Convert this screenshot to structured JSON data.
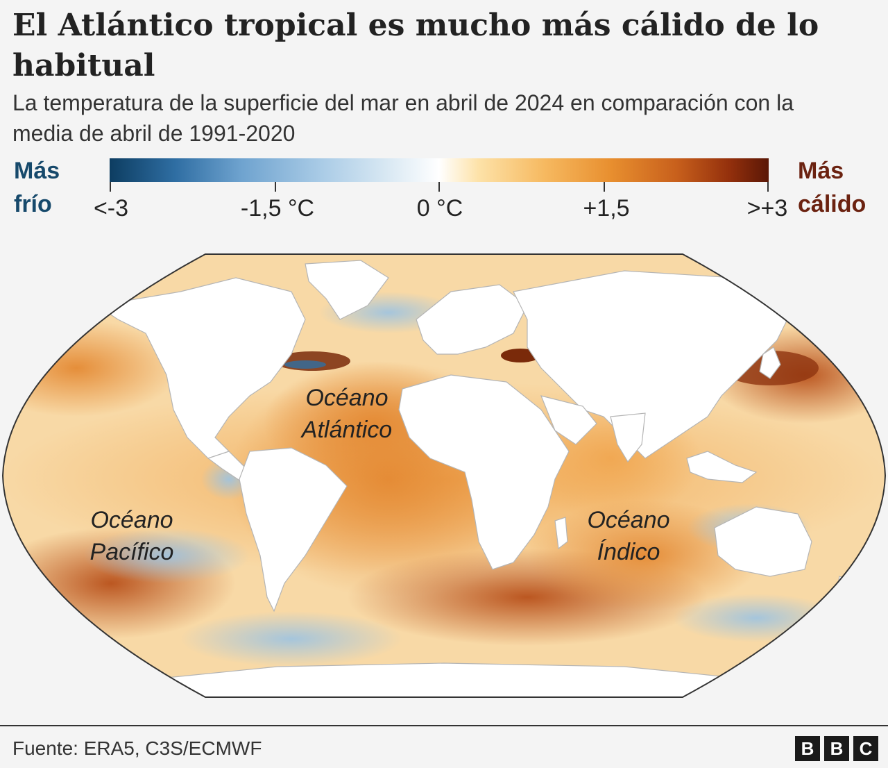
{
  "title": "El Atlántico tropical es mucho más cálido de lo habitual",
  "subtitle": "La temperatura de la superficie del mar en abril de 2024 en comparación con la media de abril de 1991-2020",
  "legend": {
    "cold_line1": "Más",
    "cold_line2": "frío",
    "warm_line1": "Más",
    "warm_line2": "cálido",
    "ticks": [
      "<-3",
      "-1,5 °C",
      "0 °C",
      "+1,5",
      ">+3"
    ],
    "colors": {
      "cold": "#16496b",
      "warm": "#6b2210",
      "scale": [
        "#0d3d61",
        "#6fa3cf",
        "#ffffff",
        "#f6b960",
        "#5a1706"
      ]
    }
  },
  "map": {
    "oceans": [
      {
        "line1": "Océano",
        "line2": "Atlántico"
      },
      {
        "line1": "Océano",
        "line2": "Pacífico"
      },
      {
        "line1": "Océano",
        "line2": "Índico"
      }
    ]
  },
  "source": "Fuente: ERA5, C3S/ECMWF",
  "logo": {
    "letters": [
      "B",
      "B",
      "C"
    ]
  }
}
